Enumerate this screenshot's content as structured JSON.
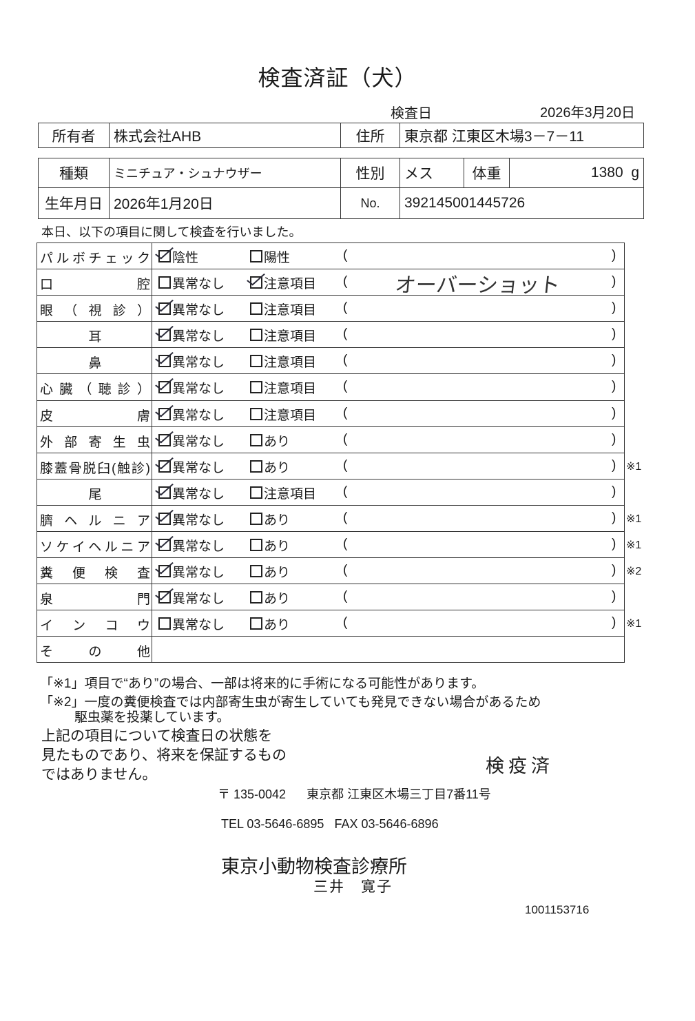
{
  "title": "検査済証（犬）",
  "inspection": {
    "label": "検査日",
    "date": "2026年3月20日"
  },
  "owner": {
    "label": "所有者",
    "value": "株式会社AHB",
    "address_label": "住所",
    "address": "東京都 江東区木場3－7－11"
  },
  "pet": {
    "breed_label": "種類",
    "breed": "ミニチュア・シュナウザー",
    "sex_label": "性別",
    "sex": "メス",
    "weight_label": "体重",
    "weight": "1380",
    "weight_unit": "g",
    "birth_label": "生年月日",
    "birth": "2026年1月20日",
    "no_label": "No.",
    "no": "392145001445726"
  },
  "intro": "本日、以下の項目に関して検査を行いました。",
  "paren_open": "(",
  "paren_close": ")",
  "items": [
    {
      "label": "パルボチェック",
      "opt1": "陰性",
      "opt2": "陽性",
      "checked": 1,
      "remark": "",
      "note": ""
    },
    {
      "label": "口腔",
      "opt1": "異常なし",
      "opt2": "注意項目",
      "checked": 2,
      "remark": "オーバーショット",
      "note": ""
    },
    {
      "label": "眼（視診）",
      "opt1": "異常なし",
      "opt2": "注意項目",
      "checked": 1,
      "remark": "",
      "note": ""
    },
    {
      "label": "耳",
      "opt1": "異常なし",
      "opt2": "注意項目",
      "checked": 1,
      "remark": "",
      "note": "",
      "centered": true
    },
    {
      "label": "鼻",
      "opt1": "異常なし",
      "opt2": "注意項目",
      "checked": 1,
      "remark": "",
      "note": "",
      "centered": true
    },
    {
      "label": "心臓（聴診）",
      "opt1": "異常なし",
      "opt2": "注意項目",
      "checked": 1,
      "remark": "",
      "note": ""
    },
    {
      "label": "皮膚",
      "opt1": "異常なし",
      "opt2": "注意項目",
      "checked": 1,
      "remark": "",
      "note": ""
    },
    {
      "label": "外部寄生虫",
      "opt1": "異常なし",
      "opt2": "あり",
      "checked": 1,
      "remark": "",
      "note": ""
    },
    {
      "label": "膝蓋骨脱臼(触診)",
      "opt1": "異常なし",
      "opt2": "あり",
      "checked": 1,
      "remark": "",
      "note": "※1"
    },
    {
      "label": "尾",
      "opt1": "異常なし",
      "opt2": "注意項目",
      "checked": 1,
      "remark": "",
      "note": "",
      "centered": true
    },
    {
      "label": "臍ヘルニア",
      "opt1": "異常なし",
      "opt2": "あり",
      "checked": 1,
      "remark": "",
      "note": "※1"
    },
    {
      "label": "ソケイヘルニア",
      "opt1": "異常なし",
      "opt2": "あり",
      "checked": 1,
      "remark": "",
      "note": "※1"
    },
    {
      "label": "糞便検査",
      "opt1": "異常なし",
      "opt2": "あり",
      "checked": 1,
      "remark": "",
      "note": "※2"
    },
    {
      "label": "泉門",
      "opt1": "異常なし",
      "opt2": "あり",
      "checked": 1,
      "remark": "",
      "note": ""
    },
    {
      "label": "インコウ",
      "opt1": "異常なし",
      "opt2": "あり",
      "checked": 0,
      "remark": "",
      "note": "※1"
    },
    {
      "label": "その他",
      "other": true
    }
  ],
  "footnotes": [
    "「※1」項目で“あり”の場合、一部は将来的に手術になる可能性があります。",
    "「※2」一度の糞便検査では内部寄生虫が寄生していても発見できない場合があるため",
    "駆虫薬を投薬しています。"
  ],
  "disclaimer": [
    "上記の項目について検査日の状態を",
    "見たものであり、将来を保証するもの",
    "ではありません。"
  ],
  "stamp": "検疫済",
  "clinic": {
    "postal": "〒 135-0042",
    "address": "東京都 江東区木場三丁目7番11号",
    "tel": "TEL 03-5646-6895",
    "fax": "FAX 03-5646-6896",
    "name": "東京小動物検査診療所",
    "vet": "三井　寛子"
  },
  "serial": "1001153716"
}
